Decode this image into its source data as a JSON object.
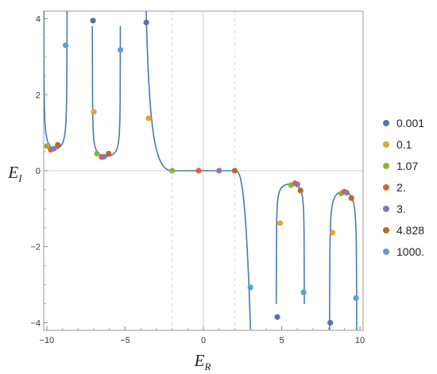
{
  "chart_data": {
    "type": "scatter",
    "title": "",
    "xlabel": "E",
    "xlabel_sub": "R",
    "ylabel": "E",
    "ylabel_sub": "I",
    "xlim": [
      -10.2,
      10.2
    ],
    "ylim": [
      -4.2,
      4.2
    ],
    "xticks": [
      -10,
      -5,
      0,
      5,
      10
    ],
    "xtick_labels": [
      "−10",
      "−5",
      "0",
      "5",
      "10"
    ],
    "yticks": [
      -4,
      -2,
      0,
      2,
      4
    ],
    "ytick_labels": [
      "−4",
      "−2",
      "0",
      "2",
      "4"
    ],
    "grid": false,
    "reference_lines": {
      "solid": [
        0
      ],
      "dashed": [
        -2,
        2
      ],
      "horizontal_solid": [
        0
      ]
    },
    "legend_position": "right",
    "curve_color": "#4a78b8",
    "series": [
      {
        "name": "0.001",
        "color": "#5b6fb0",
        "points": [
          [
            -7.05,
            3.95
          ],
          [
            -3.65,
            3.9
          ],
          [
            4.72,
            -3.85
          ],
          [
            8.1,
            -4.0
          ]
        ]
      },
      {
        "name": "0.1",
        "color": "#e8a42a",
        "points": [
          [
            -7.0,
            1.55
          ],
          [
            -3.5,
            1.38
          ],
          [
            4.9,
            -1.38
          ],
          [
            8.25,
            -1.63
          ]
        ]
      },
      {
        "name": "1.07",
        "color": "#8fb43a",
        "points": [
          [
            -10.0,
            0.65
          ],
          [
            -6.8,
            0.45
          ],
          [
            -2.0,
            0.0
          ],
          [
            5.6,
            -0.38
          ],
          [
            8.8,
            -0.6
          ]
        ]
      },
      {
        "name": "2.",
        "color": "#e0603a",
        "points": [
          [
            -9.75,
            0.55
          ],
          [
            -6.5,
            0.36
          ],
          [
            -0.3,
            0.0
          ],
          [
            5.85,
            -0.33
          ],
          [
            9.0,
            -0.55
          ]
        ]
      },
      {
        "name": "3.",
        "color": "#8a75b5",
        "points": [
          [
            -9.55,
            0.58
          ],
          [
            -6.35,
            0.37
          ],
          [
            1.0,
            0.0
          ],
          [
            6.0,
            -0.36
          ],
          [
            9.15,
            -0.58
          ]
        ]
      },
      {
        "name": "4.828",
        "color": "#b86a25",
        "points": [
          [
            -9.3,
            0.68
          ],
          [
            -6.05,
            0.45
          ],
          [
            2.0,
            0.0
          ],
          [
            6.2,
            -0.52
          ],
          [
            9.45,
            -0.72
          ]
        ]
      },
      {
        "name": "1000.",
        "color": "#58a0d6",
        "points": [
          [
            -8.8,
            3.3
          ],
          [
            -5.3,
            3.18
          ],
          [
            3.0,
            -3.07
          ],
          [
            6.4,
            -3.2
          ],
          [
            9.75,
            -3.35
          ]
        ]
      }
    ]
  }
}
